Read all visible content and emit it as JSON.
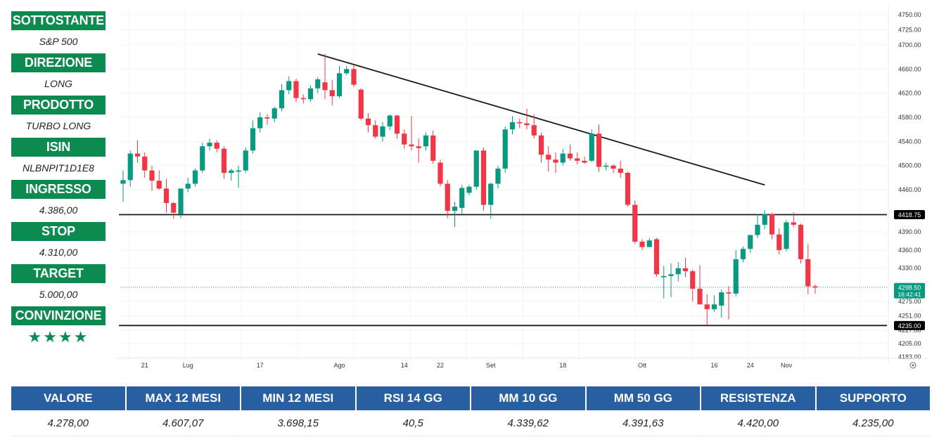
{
  "sidebar": {
    "items": [
      {
        "label": "SOTTOSTANTE",
        "value": "S&P 500"
      },
      {
        "label": "DIREZIONE",
        "value": "LONG"
      },
      {
        "label": "PRODOTTO",
        "value": "TURBO LONG"
      },
      {
        "label": "ISIN",
        "value": "NLBNPIT1D1E8"
      },
      {
        "label": "INGRESSO",
        "value": "4.386,00"
      },
      {
        "label": "STOP",
        "value": "4.310,00"
      },
      {
        "label": "TARGET",
        "value": "5.000,00"
      },
      {
        "label": "CONVINZIONE",
        "value": "★★★★"
      }
    ]
  },
  "stats": {
    "headers": [
      "VALORE",
      "MAX 12 MESI",
      "MIN 12 MESI",
      "RSI 14 GG",
      "MM 10 GG",
      "MM 50 GG",
      "RESISTENZA",
      "SUPPORTO"
    ],
    "values": [
      "4.278,00",
      "4.607,07",
      "3.698,15",
      "40,5",
      "4.339,62",
      "4.391,63",
      "4.420,00",
      "4.235,00"
    ]
  },
  "colors": {
    "green_label": "#0c8a4f",
    "blue_header": "#275fa0",
    "candle_up": "#089981",
    "candle_down": "#f23645",
    "price_line": "#26a69a"
  },
  "chart_data": {
    "type": "candlestick",
    "y_ticks": [
      "4750.00",
      "4725.00",
      "4700.00",
      "4660.00",
      "4620.00",
      "4580.00",
      "4540.00",
      "4500.00",
      "4460.00",
      "4390.00",
      "4360.00",
      "4330.00",
      "4275.00",
      "4251.00",
      "4227.00",
      "4205.00",
      "4183.00"
    ],
    "x_ticks": [
      {
        "label": "21",
        "i": 3
      },
      {
        "label": "Lug",
        "i": 9
      },
      {
        "label": "17",
        "i": 19
      },
      {
        "label": "Ago",
        "i": 30
      },
      {
        "label": "14",
        "i": 39
      },
      {
        "label": "22",
        "i": 44
      },
      {
        "label": "Set",
        "i": 51
      },
      {
        "label": "18",
        "i": 61
      },
      {
        "label": "Ott",
        "i": 72
      },
      {
        "label": "16",
        "i": 82
      },
      {
        "label": "24",
        "i": 87
      },
      {
        "label": "Nov",
        "i": 92
      }
    ],
    "horizontal_levels": [
      {
        "price": 4418.75,
        "label": "4418.75"
      },
      {
        "price": 4235.0,
        "label": "4235.00"
      }
    ],
    "current_price": {
      "price": 4298.5,
      "label": "4298.50",
      "countdown": "16:42:41"
    },
    "trendline": {
      "from": {
        "i": 27,
        "price": 4685
      },
      "to": {
        "i": 89,
        "price": 4468
      }
    },
    "candles": [
      {
        "o": 4470,
        "h": 4492,
        "l": 4440,
        "c": 4476
      },
      {
        "o": 4476,
        "h": 4525,
        "l": 4465,
        "c": 4520
      },
      {
        "o": 4520,
        "h": 4542,
        "l": 4505,
        "c": 4515
      },
      {
        "o": 4515,
        "h": 4522,
        "l": 4480,
        "c": 4492
      },
      {
        "o": 4492,
        "h": 4500,
        "l": 4458,
        "c": 4475
      },
      {
        "o": 4475,
        "h": 4492,
        "l": 4460,
        "c": 4462
      },
      {
        "o": 4462,
        "h": 4478,
        "l": 4422,
        "c": 4438
      },
      {
        "o": 4438,
        "h": 4440,
        "l": 4412,
        "c": 4422
      },
      {
        "o": 4420,
        "h": 4460,
        "l": 4413,
        "c": 4462
      },
      {
        "o": 4462,
        "h": 4480,
        "l": 4456,
        "c": 4470
      },
      {
        "o": 4470,
        "h": 4495,
        "l": 4465,
        "c": 4492
      },
      {
        "o": 4492,
        "h": 4538,
        "l": 4488,
        "c": 4532
      },
      {
        "o": 4532,
        "h": 4545,
        "l": 4525,
        "c": 4538
      },
      {
        "o": 4538,
        "h": 4542,
        "l": 4522,
        "c": 4528
      },
      {
        "o": 4528,
        "h": 4532,
        "l": 4478,
        "c": 4488
      },
      {
        "o": 4488,
        "h": 4495,
        "l": 4475,
        "c": 4492
      },
      {
        "o": 4490,
        "h": 4500,
        "l": 4463,
        "c": 4492
      },
      {
        "o": 4492,
        "h": 4530,
        "l": 4488,
        "c": 4525
      },
      {
        "o": 4525,
        "h": 4575,
        "l": 4520,
        "c": 4562
      },
      {
        "o": 4562,
        "h": 4588,
        "l": 4555,
        "c": 4580
      },
      {
        "o": 4580,
        "h": 4585,
        "l": 4568,
        "c": 4578
      },
      {
        "o": 4578,
        "h": 4598,
        "l": 4572,
        "c": 4595
      },
      {
        "o": 4595,
        "h": 4635,
        "l": 4590,
        "c": 4625
      },
      {
        "o": 4625,
        "h": 4648,
        "l": 4618,
        "c": 4640
      },
      {
        "o": 4640,
        "h": 4644,
        "l": 4605,
        "c": 4612
      },
      {
        "o": 4612,
        "h": 4618,
        "l": 4603,
        "c": 4610
      },
      {
        "o": 4610,
        "h": 4633,
        "l": 4606,
        "c": 4628
      },
      {
        "o": 4628,
        "h": 4647,
        "l": 4620,
        "c": 4643
      },
      {
        "o": 4638,
        "h": 4685,
        "l": 4610,
        "c": 4625
      },
      {
        "o": 4625,
        "h": 4642,
        "l": 4600,
        "c": 4615
      },
      {
        "o": 4615,
        "h": 4665,
        "l": 4612,
        "c": 4653
      },
      {
        "o": 4653,
        "h": 4665,
        "l": 4650,
        "c": 4660
      },
      {
        "o": 4660,
        "h": 4667,
        "l": 4630,
        "c": 4634
      },
      {
        "o": 4626,
        "h": 4628,
        "l": 4575,
        "c": 4578
      },
      {
        "o": 4578,
        "h": 4587,
        "l": 4555,
        "c": 4567
      },
      {
        "o": 4567,
        "h": 4575,
        "l": 4545,
        "c": 4548
      },
      {
        "o": 4548,
        "h": 4572,
        "l": 4540,
        "c": 4565
      },
      {
        "o": 4565,
        "h": 4585,
        "l": 4559,
        "c": 4583
      },
      {
        "o": 4583,
        "h": 4584,
        "l": 4545,
        "c": 4553
      },
      {
        "o": 4553,
        "h": 4560,
        "l": 4528,
        "c": 4535
      },
      {
        "o": 4535,
        "h": 4582,
        "l": 4525,
        "c": 4532
      },
      {
        "o": 4532,
        "h": 4545,
        "l": 4505,
        "c": 4529
      },
      {
        "o": 4532,
        "h": 4555,
        "l": 4525,
        "c": 4550
      },
      {
        "o": 4550,
        "h": 4558,
        "l": 4503,
        "c": 4508
      },
      {
        "o": 4505,
        "h": 4510,
        "l": 4466,
        "c": 4470
      },
      {
        "o": 4470,
        "h": 4476,
        "l": 4413,
        "c": 4425
      },
      {
        "o": 4425,
        "h": 4440,
        "l": 4398,
        "c": 4432
      },
      {
        "o": 4430,
        "h": 4468,
        "l": 4420,
        "c": 4463
      },
      {
        "o": 4455,
        "h": 4468,
        "l": 4451,
        "c": 4465
      },
      {
        "o": 4465,
        "h": 4525,
        "l": 4460,
        "c": 4525
      },
      {
        "o": 4525,
        "h": 4530,
        "l": 4425,
        "c": 4435
      },
      {
        "o": 4435,
        "h": 4472,
        "l": 4412,
        "c": 4470
      },
      {
        "o": 4470,
        "h": 4500,
        "l": 4462,
        "c": 4495
      },
      {
        "o": 4495,
        "h": 4565,
        "l": 4488,
        "c": 4560
      },
      {
        "o": 4560,
        "h": 4582,
        "l": 4552,
        "c": 4572
      },
      {
        "o": 4572,
        "h": 4578,
        "l": 4562,
        "c": 4570
      },
      {
        "o": 4570,
        "h": 4594,
        "l": 4560,
        "c": 4567
      },
      {
        "o": 4567,
        "h": 4585,
        "l": 4545,
        "c": 4550
      },
      {
        "o": 4550,
        "h": 4555,
        "l": 4505,
        "c": 4518
      },
      {
        "o": 4518,
        "h": 4532,
        "l": 4490,
        "c": 4510
      },
      {
        "o": 4510,
        "h": 4522,
        "l": 4488,
        "c": 4505
      },
      {
        "o": 4505,
        "h": 4528,
        "l": 4500,
        "c": 4520
      },
      {
        "o": 4520,
        "h": 4535,
        "l": 4508,
        "c": 4512
      },
      {
        "o": 4512,
        "h": 4522,
        "l": 4502,
        "c": 4508
      },
      {
        "o": 4508,
        "h": 4515,
        "l": 4503,
        "c": 4505
      },
      {
        "o": 4508,
        "h": 4560,
        "l": 4506,
        "c": 4553
      },
      {
        "o": 4553,
        "h": 4568,
        "l": 4490,
        "c": 4498
      },
      {
        "o": 4498,
        "h": 4505,
        "l": 4492,
        "c": 4500
      },
      {
        "o": 4500,
        "h": 4502,
        "l": 4488,
        "c": 4495
      },
      {
        "o": 4495,
        "h": 4508,
        "l": 4480,
        "c": 4488
      },
      {
        "o": 4488,
        "h": 4490,
        "l": 4432,
        "c": 4435
      },
      {
        "o": 4435,
        "h": 4442,
        "l": 4370,
        "c": 4374
      },
      {
        "o": 4374,
        "h": 4378,
        "l": 4360,
        "c": 4365
      },
      {
        "o": 4365,
        "h": 4380,
        "l": 4368,
        "c": 4376
      },
      {
        "o": 4378,
        "h": 4380,
        "l": 4316,
        "c": 4320
      },
      {
        "o": 4315,
        "h": 4334,
        "l": 4280,
        "c": 4317
      },
      {
        "o": 4317,
        "h": 4338,
        "l": 4282,
        "c": 4320
      },
      {
        "o": 4320,
        "h": 4340,
        "l": 4308,
        "c": 4330
      },
      {
        "o": 4330,
        "h": 4347,
        "l": 4315,
        "c": 4325
      },
      {
        "o": 4325,
        "h": 4328,
        "l": 4275,
        "c": 4296
      },
      {
        "o": 4296,
        "h": 4335,
        "l": 4270,
        "c": 4270
      },
      {
        "o": 4270,
        "h": 4287,
        "l": 4235,
        "c": 4262
      },
      {
        "o": 4262,
        "h": 4285,
        "l": 4258,
        "c": 4270
      },
      {
        "o": 4268,
        "h": 4295,
        "l": 4248,
        "c": 4290
      },
      {
        "o": 4290,
        "h": 4300,
        "l": 4245,
        "c": 4288
      },
      {
        "o": 4288,
        "h": 4360,
        "l": 4283,
        "c": 4345
      },
      {
        "o": 4345,
        "h": 4366,
        "l": 4340,
        "c": 4362
      },
      {
        "o": 4362,
        "h": 4385,
        "l": 4356,
        "c": 4385
      },
      {
        "o": 4385,
        "h": 4420,
        "l": 4380,
        "c": 4402
      },
      {
        "o": 4402,
        "h": 4426,
        "l": 4395,
        "c": 4420
      },
      {
        "o": 4420,
        "h": 4422,
        "l": 4378,
        "c": 4386
      },
      {
        "o": 4386,
        "h": 4396,
        "l": 4353,
        "c": 4360
      },
      {
        "o": 4362,
        "h": 4410,
        "l": 4358,
        "c": 4406
      },
      {
        "o": 4406,
        "h": 4423,
        "l": 4398,
        "c": 4402
      },
      {
        "o": 4402,
        "h": 4404,
        "l": 4338,
        "c": 4345
      },
      {
        "o": 4345,
        "h": 4370,
        "l": 4287,
        "c": 4300
      },
      {
        "o": 4300,
        "h": 4303,
        "l": 4288,
        "c": 4298
      }
    ]
  }
}
